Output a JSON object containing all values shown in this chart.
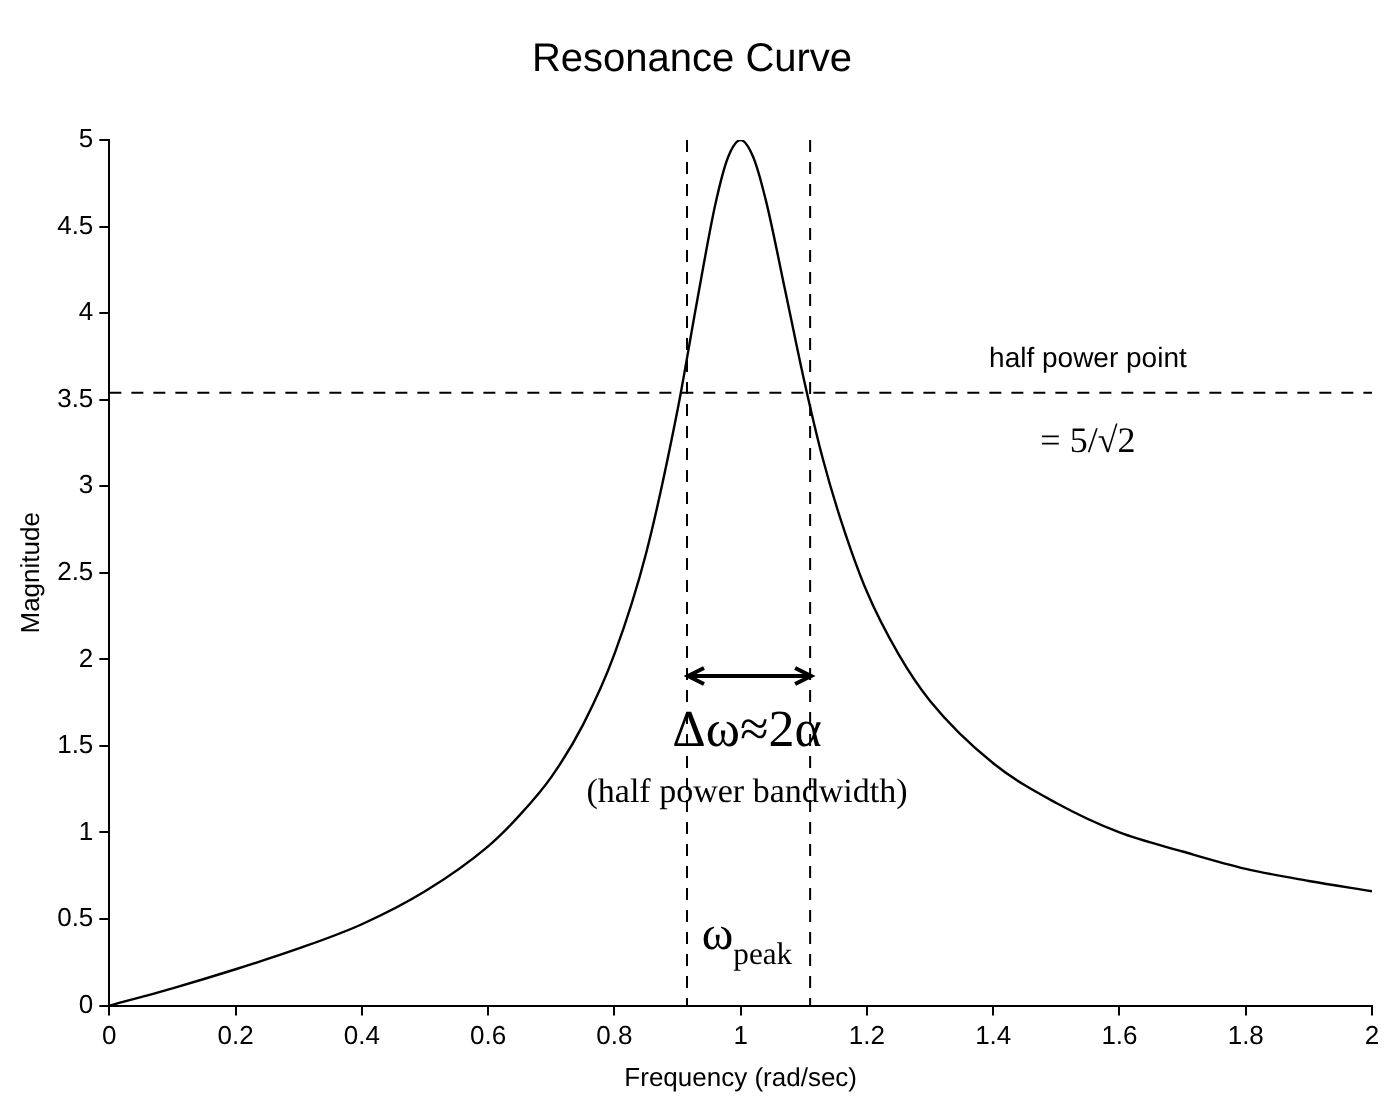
{
  "chart_data": {
    "type": "line",
    "title": "Resonance Curve",
    "xlabel": "Frequency (rad/sec)",
    "ylabel": "Magnitude",
    "x": [
      0,
      0.1,
      0.2,
      0.3,
      0.4,
      0.5,
      0.6,
      0.65,
      0.7,
      0.75,
      0.8,
      0.85,
      0.9,
      0.93,
      0.96,
      0.98,
      1.0,
      1.02,
      1.04,
      1.07,
      1.1,
      1.13,
      1.16,
      1.2,
      1.25,
      1.3,
      1.4,
      1.5,
      1.6,
      1.7,
      1.8,
      1.9,
      2.0
    ],
    "series": [
      {
        "color": "#000000",
        "values": [
          0,
          0.1,
          0.21,
          0.33,
          0.47,
          0.66,
          0.92,
          1.1,
          1.32,
          1.62,
          2.03,
          2.61,
          3.44,
          4.05,
          4.63,
          4.9,
          5,
          4.9,
          4.65,
          4.14,
          3.62,
          3.16,
          2.79,
          2.39,
          2.03,
          1.76,
          1.4,
          1.17,
          1,
          0.89,
          0.79,
          0.72,
          0.66
        ]
      }
    ],
    "xlim": [
      0,
      2
    ],
    "xticks": [
      0,
      0.2,
      0.4,
      0.6,
      0.8,
      1,
      1.2,
      1.4,
      1.6,
      1.8,
      2
    ],
    "ylim": [
      0,
      5
    ],
    "yticks": [
      0,
      0.5,
      1,
      1.5,
      2,
      2.5,
      3,
      3.5,
      4,
      4.5,
      5
    ],
    "ref_lines": [
      {
        "axis": "y",
        "value": 3.54,
        "color": "#000000",
        "line_style": "dashed"
      },
      {
        "axis": "x",
        "value": 0.915,
        "color": "#000000",
        "line_style": "dashed"
      },
      {
        "axis": "x",
        "value": 1.11,
        "color": "#000000",
        "line_style": "dashed"
      }
    ],
    "annotations": [
      "half power point",
      "= 5/√2",
      "Δω≈2α",
      "(half power bandwidth)",
      "ω$_{peak}$"
    ],
    "grid": false,
    "legend": false,
    "marker": "none",
    "line_style": "solid"
  }
}
